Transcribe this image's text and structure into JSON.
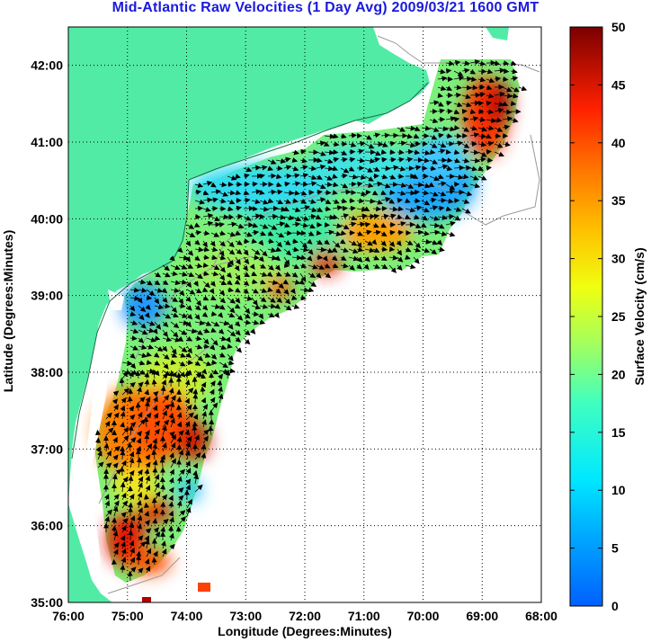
{
  "title": "Mid-Atlantic Raw Velocities (1 Day Avg) 2009/03/21 1600 GMT",
  "map": {
    "x_axis_label": "Longitude (Degrees:Minutes)",
    "y_axis_label": "Latitude (Degrees:Minutes)",
    "lon_ticks": [
      "76:00",
      "75:00",
      "74:00",
      "73:00",
      "72:00",
      "71:00",
      "70:00",
      "69:00",
      "68:00"
    ],
    "lat_ticks": [
      "35:00",
      "36:00",
      "37:00",
      "38:00",
      "39:00",
      "40:00",
      "41:00",
      "42:00"
    ],
    "lon_range": [
      -76,
      -68
    ],
    "lat_range": [
      35,
      42.5
    ],
    "land_color": "#52eba6",
    "grid": "dotted"
  },
  "colorbar": {
    "label": "Surface Velocity (cm/s)",
    "min": 0,
    "max": 50,
    "ticks": [
      "0",
      "5",
      "10",
      "15",
      "20",
      "25",
      "30",
      "35",
      "40",
      "45",
      "50"
    ],
    "colormap": "jet"
  }
}
